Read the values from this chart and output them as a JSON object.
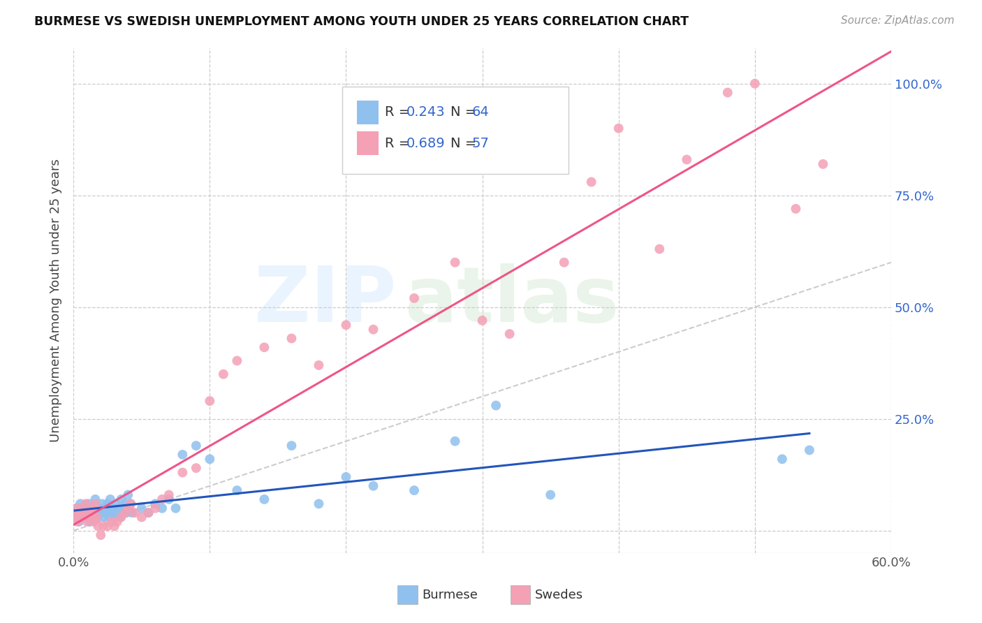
{
  "title": "BURMESE VS SWEDISH UNEMPLOYMENT AMONG YOUTH UNDER 25 YEARS CORRELATION CHART",
  "source": "Source: ZipAtlas.com",
  "ylabel": "Unemployment Among Youth under 25 years",
  "xlim": [
    0.0,
    0.6
  ],
  "ylim": [
    -0.05,
    1.08
  ],
  "x_ticks": [
    0.0,
    0.1,
    0.2,
    0.3,
    0.4,
    0.5,
    0.6
  ],
  "x_tick_labels": [
    "0.0%",
    "",
    "",
    "",
    "",
    "",
    "60.0%"
  ],
  "y_ticks": [
    0.0,
    0.25,
    0.5,
    0.75,
    1.0
  ],
  "y_tick_labels": [
    "",
    "25.0%",
    "50.0%",
    "75.0%",
    "100.0%"
  ],
  "burmese_R": "0.243",
  "burmese_N": "64",
  "swedes_R": "0.689",
  "swedes_N": "57",
  "burmese_color": "#90C0EE",
  "swedes_color": "#F4A0B5",
  "burmese_line_color": "#2255BB",
  "swedes_line_color": "#EE5588",
  "diagonal_color": "#CCCCCC",
  "burmese_x": [
    0.001,
    0.002,
    0.003,
    0.004,
    0.005,
    0.006,
    0.007,
    0.008,
    0.009,
    0.01,
    0.011,
    0.012,
    0.013,
    0.014,
    0.015,
    0.016,
    0.017,
    0.018,
    0.019,
    0.02,
    0.021,
    0.022,
    0.023,
    0.024,
    0.025,
    0.026,
    0.027,
    0.028,
    0.029,
    0.03,
    0.031,
    0.032,
    0.033,
    0.034,
    0.035,
    0.036,
    0.037,
    0.038,
    0.039,
    0.04,
    0.041,
    0.042,
    0.043,
    0.05,
    0.055,
    0.06,
    0.065,
    0.07,
    0.075,
    0.08,
    0.09,
    0.1,
    0.12,
    0.14,
    0.16,
    0.18,
    0.2,
    0.22,
    0.25,
    0.28,
    0.31,
    0.35,
    0.52,
    0.54
  ],
  "burmese_y": [
    0.04,
    0.03,
    0.05,
    0.02,
    0.06,
    0.04,
    0.03,
    0.05,
    0.04,
    0.03,
    0.06,
    0.02,
    0.04,
    0.05,
    0.03,
    0.07,
    0.04,
    0.03,
    0.05,
    0.04,
    0.06,
    0.03,
    0.05,
    0.04,
    0.06,
    0.03,
    0.07,
    0.04,
    0.05,
    0.03,
    0.06,
    0.04,
    0.05,
    0.03,
    0.07,
    0.04,
    0.05,
    0.06,
    0.04,
    0.08,
    0.05,
    0.06,
    0.04,
    0.05,
    0.04,
    0.06,
    0.05,
    0.07,
    0.05,
    0.17,
    0.19,
    0.16,
    0.09,
    0.07,
    0.19,
    0.06,
    0.12,
    0.1,
    0.09,
    0.2,
    0.28,
    0.08,
    0.16,
    0.18
  ],
  "swedes_x": [
    0.001,
    0.002,
    0.003,
    0.004,
    0.005,
    0.006,
    0.007,
    0.008,
    0.009,
    0.01,
    0.011,
    0.012,
    0.013,
    0.014,
    0.015,
    0.016,
    0.017,
    0.018,
    0.02,
    0.022,
    0.025,
    0.028,
    0.03,
    0.032,
    0.035,
    0.038,
    0.04,
    0.042,
    0.045,
    0.05,
    0.055,
    0.06,
    0.065,
    0.07,
    0.08,
    0.09,
    0.1,
    0.11,
    0.12,
    0.14,
    0.16,
    0.18,
    0.2,
    0.22,
    0.25,
    0.28,
    0.3,
    0.32,
    0.36,
    0.38,
    0.4,
    0.43,
    0.45,
    0.48,
    0.5,
    0.53,
    0.55
  ],
  "swedes_y": [
    0.03,
    0.05,
    0.02,
    0.04,
    0.03,
    0.05,
    0.04,
    0.03,
    0.06,
    0.02,
    0.04,
    0.03,
    0.05,
    0.04,
    0.02,
    0.06,
    0.03,
    0.01,
    -0.01,
    0.01,
    0.01,
    0.02,
    0.01,
    0.02,
    0.03,
    0.04,
    0.05,
    0.06,
    0.04,
    0.03,
    0.04,
    0.05,
    0.07,
    0.08,
    0.13,
    0.14,
    0.29,
    0.35,
    0.38,
    0.41,
    0.43,
    0.37,
    0.46,
    0.45,
    0.52,
    0.6,
    0.47,
    0.44,
    0.6,
    0.78,
    0.9,
    0.63,
    0.83,
    0.98,
    1.0,
    0.72,
    0.82
  ]
}
